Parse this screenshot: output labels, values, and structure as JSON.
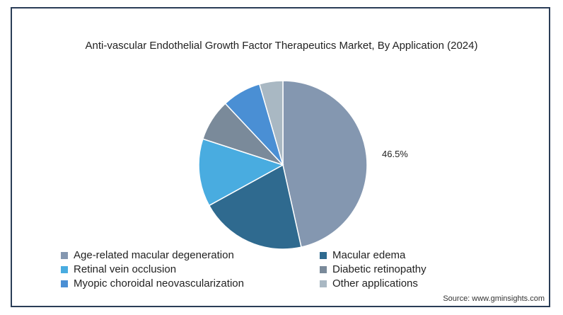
{
  "chart_data": {
    "type": "pie",
    "title": "Anti-vascular Endothelial Growth Factor Therapeutics Market, By Application (2024)",
    "slices": [
      {
        "label": "Age-related macular degeneration",
        "value": 46.5,
        "color": "#8497b0"
      },
      {
        "label": "Macular edema",
        "value": 20.5,
        "color": "#2f6a8f"
      },
      {
        "label": "Retinal vein occlusion",
        "value": 13.0,
        "color": "#49ace0"
      },
      {
        "label": "Diabetic retinopathy",
        "value": 8.0,
        "color": "#7a8a9a"
      },
      {
        "label": "Myopic choroidal neovascularization",
        "value": 7.5,
        "color": "#4a8fd4"
      },
      {
        "label": "Other applications",
        "value": 4.5,
        "color": "#a9b8c3"
      }
    ],
    "data_labels": [
      "46.5%"
    ],
    "legend_position": "bottom"
  },
  "source": "Source: www.gminsights.com"
}
